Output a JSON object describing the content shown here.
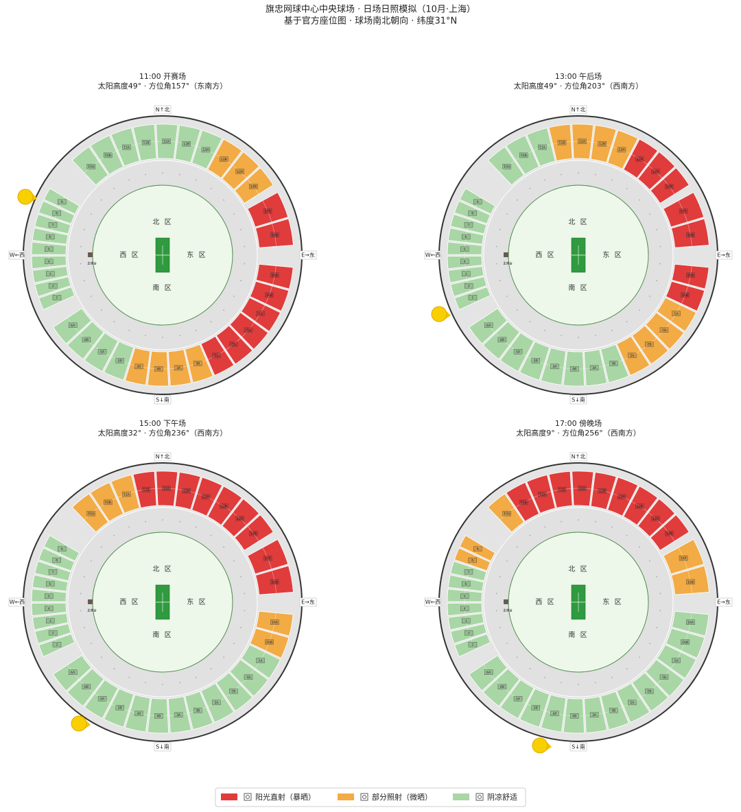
{
  "header": {
    "title": "旗忠网球中心中央球场 · 日场日照模拟（10月·上海）",
    "subtitle": "基于官方座位图 · 球场南北朝向 · 纬度31°N"
  },
  "stadium": {
    "compass": {
      "north": "N↑北",
      "south": "S↓南",
      "west": "W←西",
      "east": "E→东"
    },
    "zones": {
      "north": "北 区",
      "south": "南 区",
      "west": "西 区",
      "east": "东 区"
    },
    "box_label": "主席台"
  },
  "panels": [
    {
      "title": "11:00 开赛场",
      "subtitle": "太阳高度49° · 方位角157°（东南方）",
      "sections": [
        {
          "label": "10A",
          "color": "#a9d6a5"
        },
        {
          "label": "10B",
          "color": "#a9d6a5"
        },
        {
          "label": "11A",
          "color": "#a9d6a5"
        },
        {
          "label": "11B",
          "color": "#a9d6a5"
        },
        {
          "label": "12A",
          "color": "#a9d6a5"
        },
        {
          "label": "12B",
          "color": "#a9d6a5"
        },
        {
          "label": "13A",
          "color": "#a9d6a5"
        },
        {
          "label": "13B",
          "color": "#f2ab45"
        },
        {
          "label": "14A",
          "color": "#f2ab45"
        },
        {
          "label": "14B",
          "color": "#f2ab45"
        },
        {
          "label": "15A",
          "color": "#e03c3c"
        },
        {
          "label": "15B",
          "color": "#e03c3c"
        },
        {
          "label": "16A",
          "color": "#e03c3c"
        },
        {
          "label": "16B",
          "color": "#e03c3c"
        },
        {
          "label": "1A",
          "color": "#e03c3c"
        },
        {
          "label": "1B",
          "color": "#e03c3c"
        },
        {
          "label": "2B",
          "color": "#e03c3c"
        },
        {
          "label": "2A",
          "color": "#e03c3c"
        },
        {
          "label": "3B",
          "color": "#f2ab45"
        },
        {
          "label": "3A",
          "color": "#f2ab45"
        },
        {
          "label": "4B",
          "color": "#f2ab45"
        },
        {
          "label": "4A",
          "color": "#f2ab45"
        },
        {
          "label": "5B",
          "color": "#a9d6a5"
        },
        {
          "label": "5A",
          "color": "#a9d6a5"
        },
        {
          "label": "6B",
          "color": "#a9d6a5"
        },
        {
          "label": "6A",
          "color": "#a9d6a5"
        },
        {
          "label": "1",
          "color": "#a9d6a5"
        },
        {
          "label": "2",
          "color": "#a9d6a5"
        },
        {
          "label": "3",
          "color": "#a9d6a5"
        },
        {
          "label": "4",
          "color": "#a9d6a5"
        },
        {
          "label": "5",
          "color": "#a9d6a5"
        },
        {
          "label": "6",
          "color": "#a9d6a5"
        },
        {
          "label": "7",
          "color": "#a9d6a5"
        },
        {
          "label": "8",
          "color": "#a9d6a5"
        },
        {
          "label": "9",
          "color": "#a9d6a5"
        }
      ]
    },
    {
      "title": "13:00 午后场",
      "subtitle": "太阳高度49° · 方位角203°（西南方）",
      "sections": [
        {
          "label": "10A",
          "color": "#a9d6a5"
        },
        {
          "label": "10B",
          "color": "#a9d6a5"
        },
        {
          "label": "11A",
          "color": "#a9d6a5"
        },
        {
          "label": "11B",
          "color": "#f2ab45"
        },
        {
          "label": "12A",
          "color": "#f2ab45"
        },
        {
          "label": "12B",
          "color": "#f2ab45"
        },
        {
          "label": "13A",
          "color": "#f2ab45"
        },
        {
          "label": "13B",
          "color": "#e03c3c"
        },
        {
          "label": "14A",
          "color": "#e03c3c"
        },
        {
          "label": "14B",
          "color": "#e03c3c"
        },
        {
          "label": "15A",
          "color": "#e03c3c"
        },
        {
          "label": "15B",
          "color": "#e03c3c"
        },
        {
          "label": "16A",
          "color": "#e03c3c"
        },
        {
          "label": "16B",
          "color": "#e03c3c"
        },
        {
          "label": "1A",
          "color": "#f2ab45"
        },
        {
          "label": "1B",
          "color": "#f2ab45"
        },
        {
          "label": "2B",
          "color": "#f2ab45"
        },
        {
          "label": "2A",
          "color": "#f2ab45"
        },
        {
          "label": "3B",
          "color": "#a9d6a5"
        },
        {
          "label": "3A",
          "color": "#a9d6a5"
        },
        {
          "label": "4B",
          "color": "#a9d6a5"
        },
        {
          "label": "4A",
          "color": "#a9d6a5"
        },
        {
          "label": "5B",
          "color": "#a9d6a5"
        },
        {
          "label": "5A",
          "color": "#a9d6a5"
        },
        {
          "label": "6B",
          "color": "#a9d6a5"
        },
        {
          "label": "6A",
          "color": "#a9d6a5"
        },
        {
          "label": "1",
          "color": "#a9d6a5"
        },
        {
          "label": "2",
          "color": "#a9d6a5"
        },
        {
          "label": "3",
          "color": "#a9d6a5"
        },
        {
          "label": "4",
          "color": "#a9d6a5"
        },
        {
          "label": "5",
          "color": "#a9d6a5"
        },
        {
          "label": "6",
          "color": "#a9d6a5"
        },
        {
          "label": "7",
          "color": "#a9d6a5"
        },
        {
          "label": "8",
          "color": "#a9d6a5"
        },
        {
          "label": "9",
          "color": "#a9d6a5"
        }
      ]
    },
    {
      "title": "15:00 下午场",
      "subtitle": "太阳高度32° · 方位角236°（西南方）",
      "sections": [
        {
          "label": "10A",
          "color": "#f2ab45"
        },
        {
          "label": "10B",
          "color": "#f2ab45"
        },
        {
          "label": "11A",
          "color": "#f2ab45"
        },
        {
          "label": "11B",
          "color": "#e03c3c"
        },
        {
          "label": "12A",
          "color": "#e03c3c"
        },
        {
          "label": "12B",
          "color": "#e03c3c"
        },
        {
          "label": "13A",
          "color": "#e03c3c"
        },
        {
          "label": "13B",
          "color": "#e03c3c"
        },
        {
          "label": "14A",
          "color": "#e03c3c"
        },
        {
          "label": "14B",
          "color": "#e03c3c"
        },
        {
          "label": "15A",
          "color": "#e03c3c"
        },
        {
          "label": "15B",
          "color": "#e03c3c"
        },
        {
          "label": "16A",
          "color": "#f2ab45"
        },
        {
          "label": "16B",
          "color": "#f2ab45"
        },
        {
          "label": "1A",
          "color": "#a9d6a5"
        },
        {
          "label": "1B",
          "color": "#a9d6a5"
        },
        {
          "label": "2B",
          "color": "#a9d6a5"
        },
        {
          "label": "2A",
          "color": "#a9d6a5"
        },
        {
          "label": "3B",
          "color": "#a9d6a5"
        },
        {
          "label": "3A",
          "color": "#a9d6a5"
        },
        {
          "label": "4B",
          "color": "#a9d6a5"
        },
        {
          "label": "4A",
          "color": "#a9d6a5"
        },
        {
          "label": "5B",
          "color": "#a9d6a5"
        },
        {
          "label": "5A",
          "color": "#a9d6a5"
        },
        {
          "label": "6B",
          "color": "#a9d6a5"
        },
        {
          "label": "6A",
          "color": "#a9d6a5"
        },
        {
          "label": "1",
          "color": "#a9d6a5"
        },
        {
          "label": "2",
          "color": "#a9d6a5"
        },
        {
          "label": "3",
          "color": "#a9d6a5"
        },
        {
          "label": "4",
          "color": "#a9d6a5"
        },
        {
          "label": "5",
          "color": "#a9d6a5"
        },
        {
          "label": "6",
          "color": "#a9d6a5"
        },
        {
          "label": "7",
          "color": "#a9d6a5"
        },
        {
          "label": "8",
          "color": "#a9d6a5"
        },
        {
          "label": "9",
          "color": "#a9d6a5"
        }
      ]
    },
    {
      "title": "17:00 傍晚场",
      "subtitle": "太阳高度9° · 方位角256°（西南方）",
      "sections": [
        {
          "label": "10A",
          "color": "#f2ab45"
        },
        {
          "label": "10B",
          "color": "#e03c3c"
        },
        {
          "label": "11A",
          "color": "#e03c3c"
        },
        {
          "label": "11B",
          "color": "#e03c3c"
        },
        {
          "label": "12A",
          "color": "#e03c3c"
        },
        {
          "label": "12B",
          "color": "#e03c3c"
        },
        {
          "label": "13A",
          "color": "#e03c3c"
        },
        {
          "label": "13B",
          "color": "#e03c3c"
        },
        {
          "label": "14A",
          "color": "#e03c3c"
        },
        {
          "label": "14B",
          "color": "#e03c3c"
        },
        {
          "label": "15A",
          "color": "#f2ab45"
        },
        {
          "label": "15B",
          "color": "#f2ab45"
        },
        {
          "label": "16A",
          "color": "#a9d6a5"
        },
        {
          "label": "16B",
          "color": "#a9d6a5"
        },
        {
          "label": "1A",
          "color": "#a9d6a5"
        },
        {
          "label": "1B",
          "color": "#a9d6a5"
        },
        {
          "label": "2B",
          "color": "#a9d6a5"
        },
        {
          "label": "2A",
          "color": "#a9d6a5"
        },
        {
          "label": "3B",
          "color": "#a9d6a5"
        },
        {
          "label": "3A",
          "color": "#a9d6a5"
        },
        {
          "label": "4B",
          "color": "#a9d6a5"
        },
        {
          "label": "4A",
          "color": "#a9d6a5"
        },
        {
          "label": "5B",
          "color": "#a9d6a5"
        },
        {
          "label": "5A",
          "color": "#a9d6a5"
        },
        {
          "label": "6B",
          "color": "#a9d6a5"
        },
        {
          "label": "6A",
          "color": "#a9d6a5"
        },
        {
          "label": "1",
          "color": "#a9d6a5"
        },
        {
          "label": "2",
          "color": "#a9d6a5"
        },
        {
          "label": "3",
          "color": "#a9d6a5"
        },
        {
          "label": "4",
          "color": "#a9d6a5"
        },
        {
          "label": "5",
          "color": "#a9d6a5"
        },
        {
          "label": "6",
          "color": "#a9d6a5"
        },
        {
          "label": "7",
          "color": "#a9d6a5"
        },
        {
          "label": "8",
          "color": "#f2ab45"
        },
        {
          "label": "9",
          "color": "#f2ab45"
        }
      ]
    }
  ],
  "legend": [
    {
      "label": "阳光直射（暴晒）",
      "color": "#e03c3c"
    },
    {
      "label": "部分照射（微晒）",
      "color": "#f2ab45"
    },
    {
      "label": "阴凉舒适",
      "color": "#a9d6a5"
    }
  ]
}
